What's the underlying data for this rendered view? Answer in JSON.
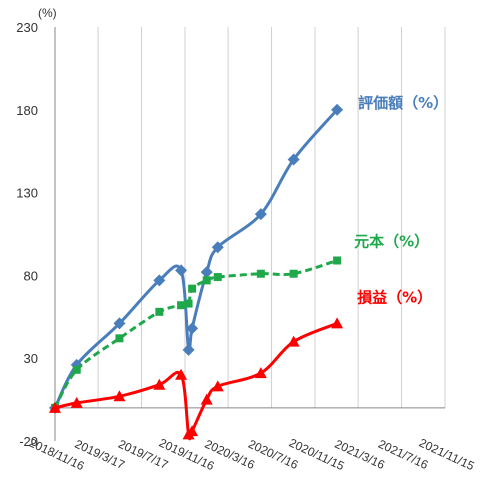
{
  "chart_data": {
    "type": "line",
    "unit_label": "(%)",
    "ylim": [
      -20,
      230
    ],
    "yticks": [
      -20,
      30,
      80,
      130,
      180,
      230
    ],
    "xlim": [
      "2018/11/16",
      "2021/11/15"
    ],
    "xticks": [
      "2018/11/16",
      "2019/3/17",
      "2019/7/17",
      "2019/11/16",
      "2020/3/16",
      "2020/7/16",
      "2020/11/15",
      "2021/3/16",
      "2021/7/16",
      "2021/11/15"
    ],
    "grid": "vertical",
    "series": [
      {
        "name": "評価額（%）",
        "color": "#4a7ebb",
        "marker": "diamond",
        "dash": "solid",
        "points": [
          [
            "2018/11/16",
            0
          ],
          [
            "2019/1/16",
            26
          ],
          [
            "2019/5/16",
            51
          ],
          [
            "2019/9/5",
            77
          ],
          [
            "2019/11/5",
            83
          ],
          [
            "2019/11/26",
            35
          ],
          [
            "2019/12/6",
            48
          ],
          [
            "2020/1/16",
            82
          ],
          [
            "2020/2/16",
            97
          ],
          [
            "2020/6/16",
            117
          ],
          [
            "2020/9/16",
            150
          ],
          [
            "2021/1/16",
            180
          ]
        ]
      },
      {
        "name": "元本（%）",
        "color": "#1fa84a",
        "marker": "square",
        "dash": "dashed",
        "points": [
          [
            "2018/11/16",
            0
          ],
          [
            "2019/1/16",
            23
          ],
          [
            "2019/5/16",
            42
          ],
          [
            "2019/9/5",
            58
          ],
          [
            "2019/11/5",
            62
          ],
          [
            "2019/11/26",
            63
          ],
          [
            "2019/12/6",
            72
          ],
          [
            "2020/1/16",
            77
          ],
          [
            "2020/2/16",
            79
          ],
          [
            "2020/6/16",
            81
          ],
          [
            "2020/9/16",
            81
          ],
          [
            "2021/1/16",
            89
          ]
        ]
      },
      {
        "name": "損益（%）",
        "color": "#ff0000",
        "marker": "triangle",
        "dash": "solid",
        "points": [
          [
            "2018/11/16",
            0
          ],
          [
            "2019/1/16",
            3
          ],
          [
            "2019/5/16",
            7
          ],
          [
            "2019/9/5",
            14
          ],
          [
            "2019/11/5",
            20
          ],
          [
            "2019/11/26",
            -16
          ],
          [
            "2019/12/6",
            -14
          ],
          [
            "2020/1/16",
            5
          ],
          [
            "2020/2/16",
            13
          ],
          [
            "2020/6/16",
            21
          ],
          [
            "2020/9/16",
            40
          ],
          [
            "2021/1/16",
            51
          ]
        ]
      }
    ]
  }
}
